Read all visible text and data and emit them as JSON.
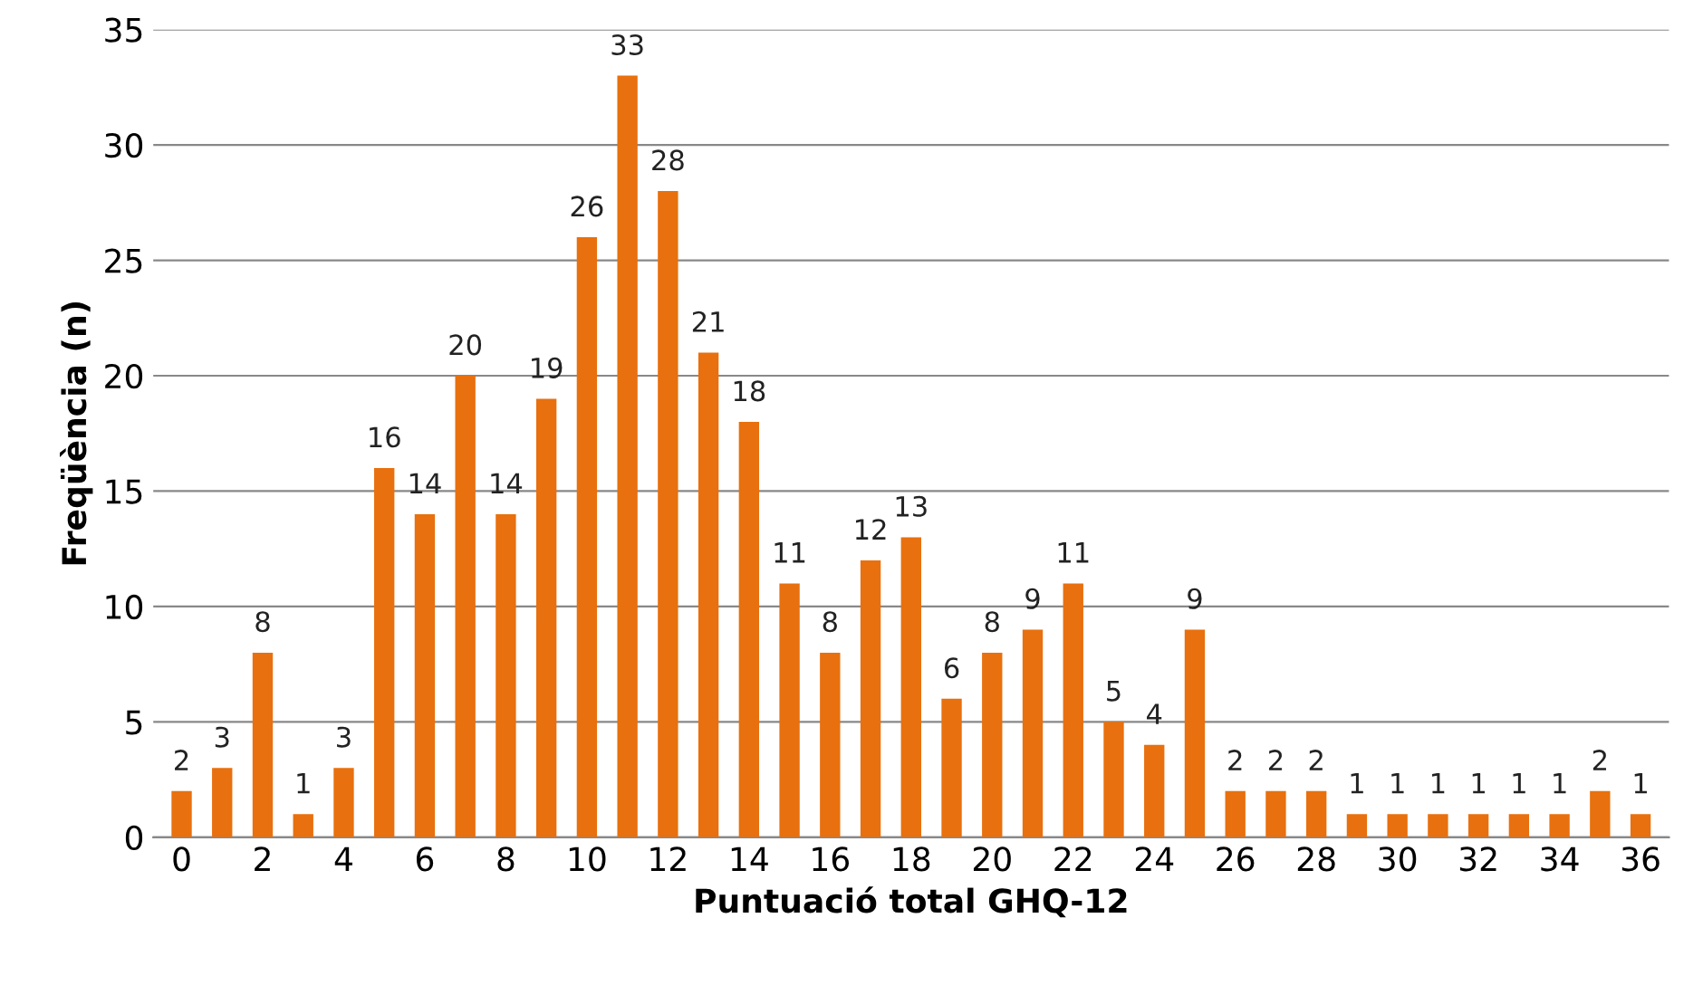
{
  "chart_data": {
    "type": "bar",
    "xlabel": "Puntuació total GHQ-12",
    "ylabel": "Freqüència (n)",
    "categories": [
      "0",
      null,
      "2",
      null,
      "4",
      null,
      "6",
      null,
      "8",
      null,
      "10",
      null,
      "12",
      null,
      "14",
      null,
      "16",
      null,
      "18",
      null,
      "20",
      null,
      "22",
      null,
      "24",
      null,
      "26",
      null,
      "28",
      null,
      "30",
      null,
      "32",
      null,
      "34",
      null,
      "36"
    ],
    "values": [
      2,
      3,
      8,
      1,
      3,
      16,
      14,
      20,
      14,
      19,
      26,
      33,
      28,
      21,
      18,
      11,
      8,
      12,
      13,
      6,
      8,
      9,
      11,
      5,
      4,
      9,
      2,
      2,
      2,
      1,
      1,
      1,
      1,
      1,
      1,
      2,
      1
    ],
    "color": "#e8700e",
    "ylim": [
      0,
      35
    ],
    "yticks": [
      0,
      5,
      10,
      15,
      20,
      25,
      30,
      35
    ],
    "grid": "y",
    "data_labels": true,
    "legend": false
  }
}
